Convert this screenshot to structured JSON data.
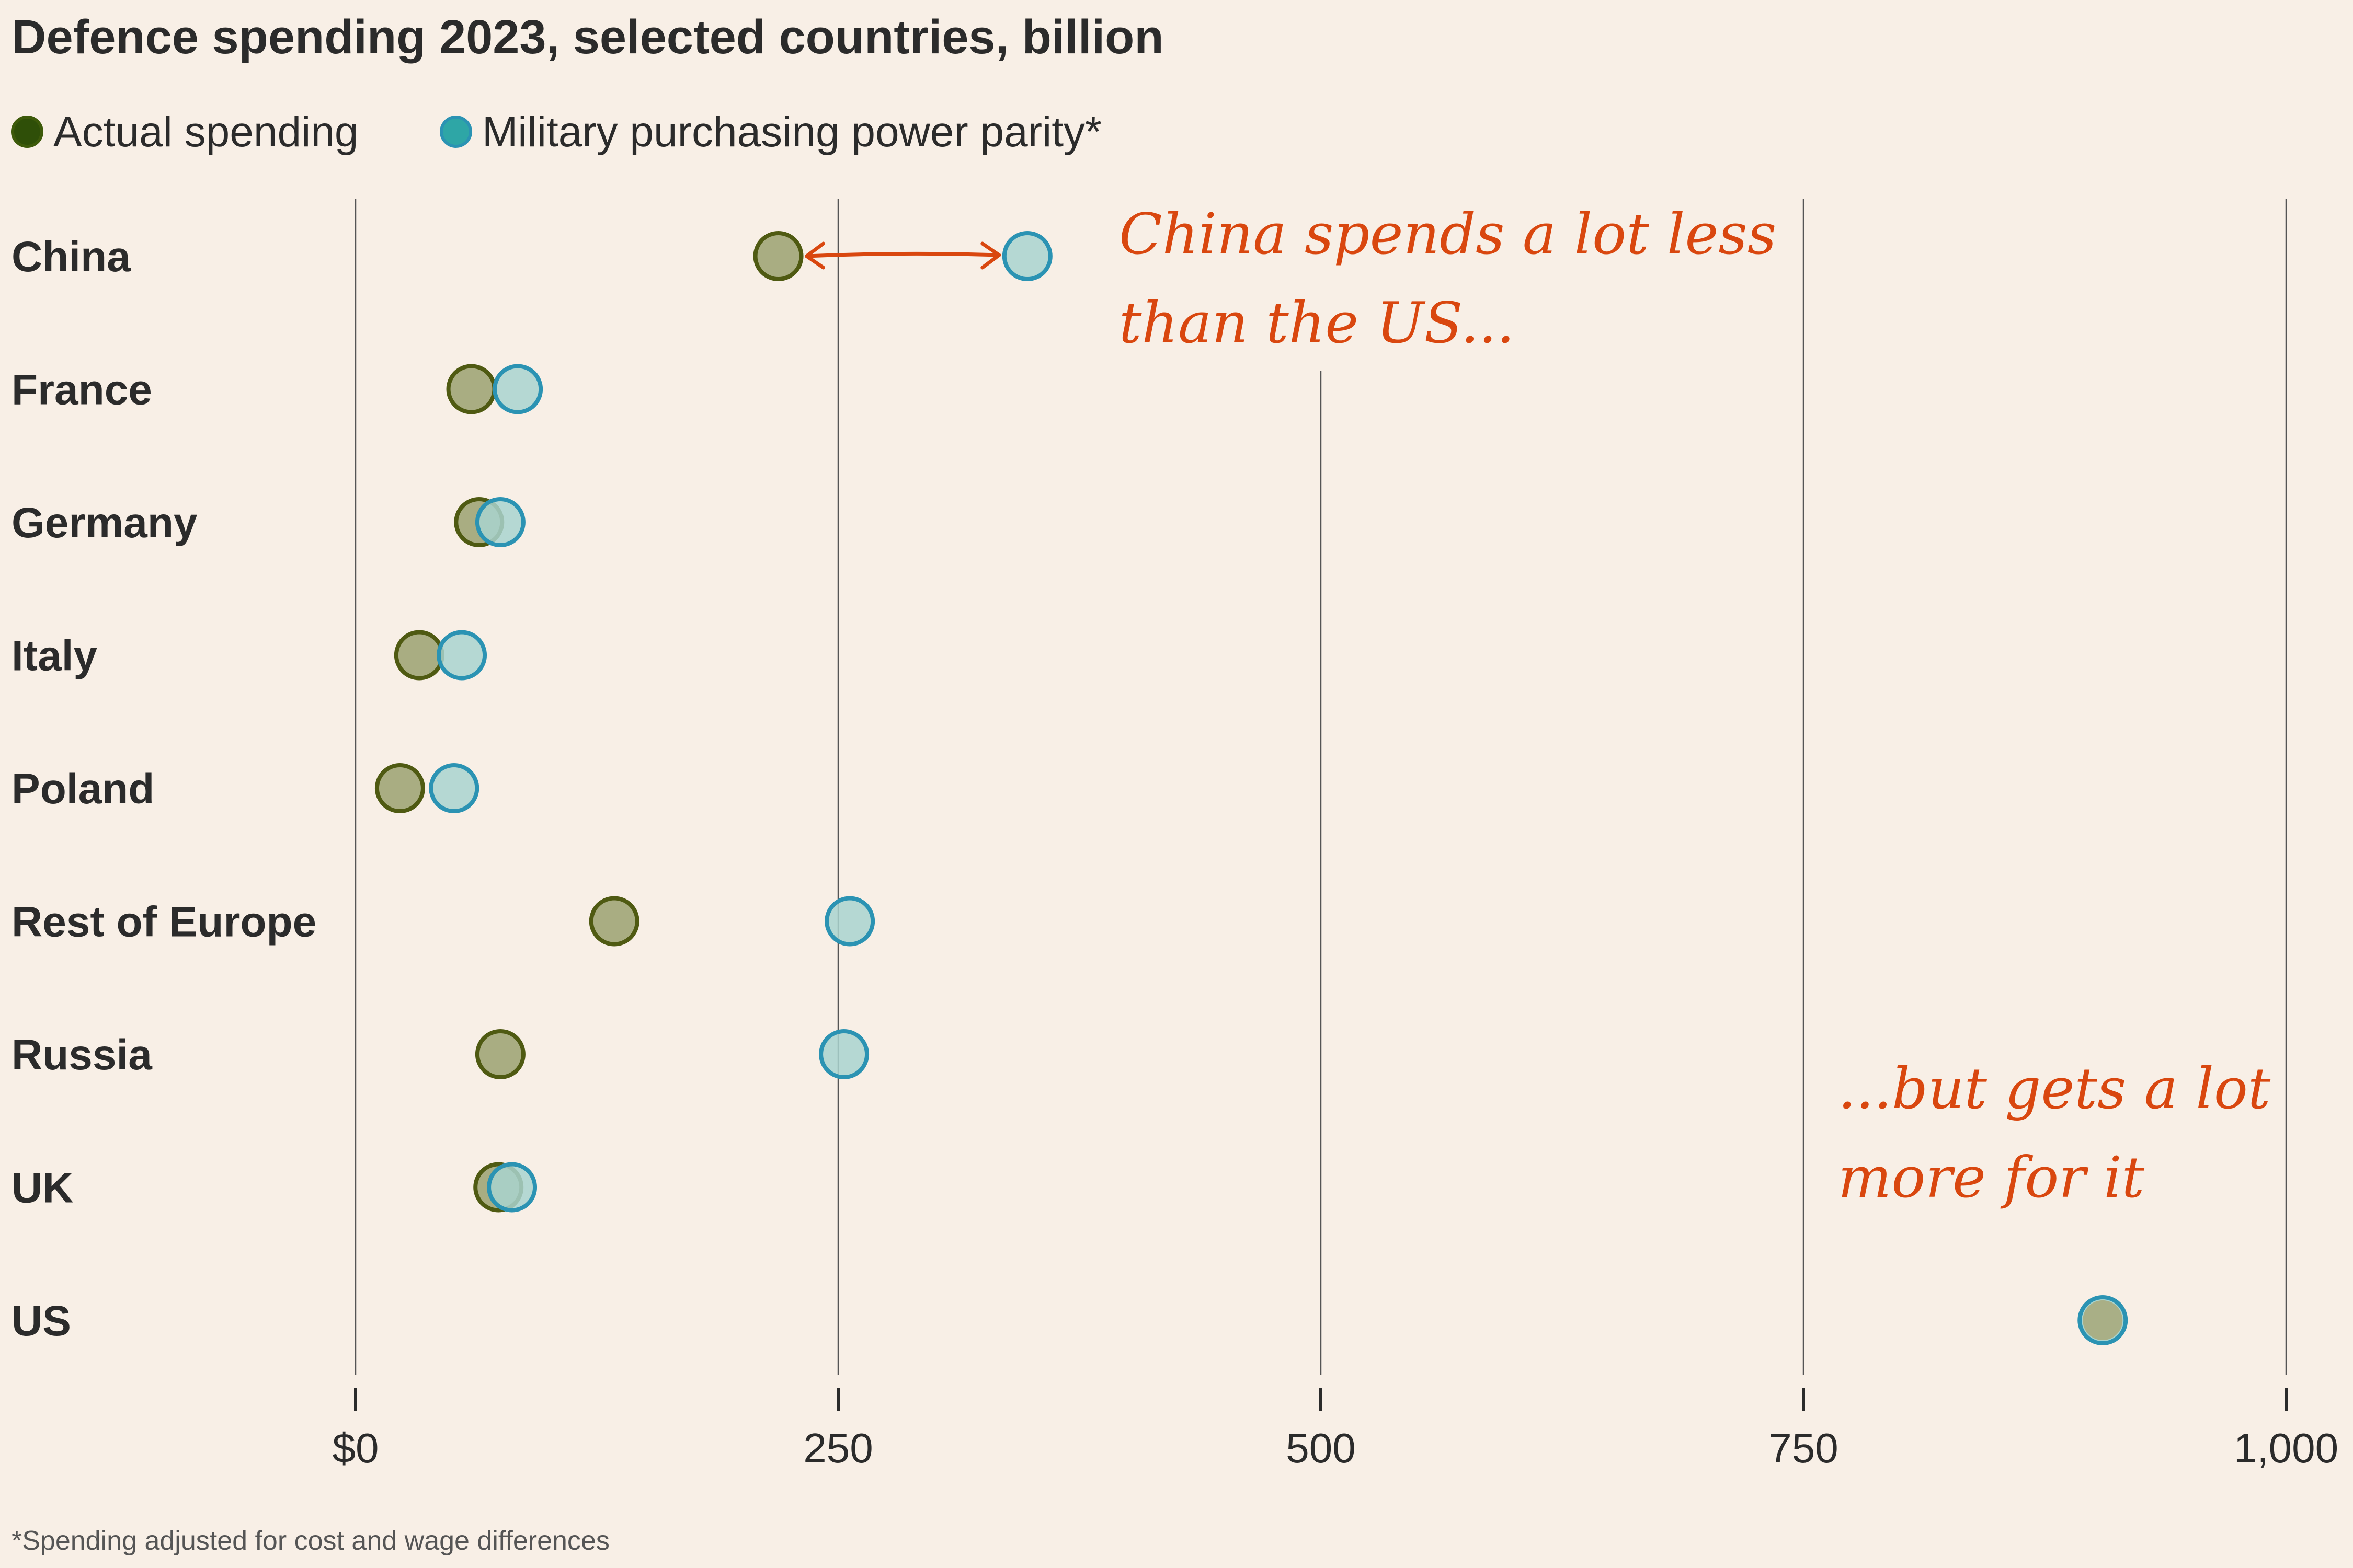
{
  "chart_data": {
    "type": "scatter",
    "title": "Defence spending 2023, selected countries, billion",
    "legend": [
      {
        "name": "Actual spending",
        "color": "#3d5a0a"
      },
      {
        "name": "Military purchasing power parity*",
        "color": "#2ea6a6"
      }
    ],
    "categories": [
      "China",
      "France",
      "Germany",
      "Italy",
      "Poland",
      "Rest of Europe",
      "Russia",
      "UK",
      "US"
    ],
    "series": [
      {
        "name": "Actual spending",
        "stroke": "#4f5a12",
        "fill": "#a9ad82",
        "values": [
          219,
          60,
          64,
          33,
          23,
          134,
          75,
          74,
          905
        ]
      },
      {
        "name": "Military purchasing power parity*",
        "stroke": "#2b93b3",
        "fill": "#a9d4cf",
        "values": [
          348,
          84,
          75,
          55,
          51,
          256,
          253,
          81,
          905
        ]
      }
    ],
    "xlim": [
      0,
      1000
    ],
    "xticks": [
      0,
      250,
      500,
      750,
      1000
    ],
    "xtick_labels": [
      "$0",
      "250",
      "500",
      "750",
      "1,000"
    ],
    "xlabel": "",
    "ylabel": "",
    "grid": true,
    "annotations": {
      "china_line1": "China spends a lot less",
      "china_line2": "than the US...",
      "us_line1": "...but gets a lot",
      "us_line2": "more for it",
      "annotation_color": "#d9470f"
    },
    "footnote": "*Spending adjusted for cost and wage differences"
  }
}
